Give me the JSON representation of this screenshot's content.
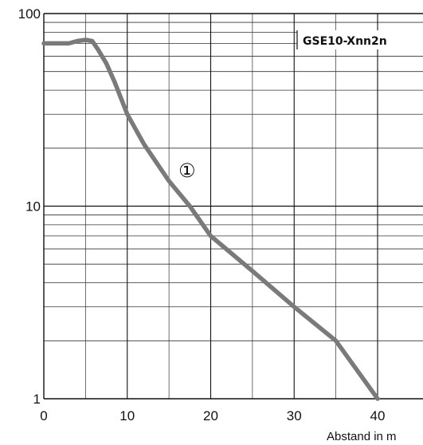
{
  "chart_data": {
    "type": "line",
    "title": "",
    "xlabel": "Abstand in m",
    "ylabel": "",
    "x_scale": "linear",
    "y_scale": "log",
    "xlim": [
      0,
      45
    ],
    "ylim": [
      1,
      100
    ],
    "x_ticks": [
      0,
      10,
      20,
      30,
      40
    ],
    "x_tick_labels": [
      "0",
      "10",
      "20",
      "30",
      "40"
    ],
    "y_ticks": [
      1,
      10,
      100
    ],
    "y_tick_labels": [
      "1",
      "10",
      "100"
    ],
    "grid": true,
    "legend_label": "GSE10-Xnn2n",
    "legend_position": "top-right",
    "annotation": "①",
    "series": [
      {
        "color": "#7a7a7a",
        "x": [
          0,
          3,
          4,
          5,
          5.8,
          6.5,
          7.5,
          8.5,
          10,
          12,
          15,
          17.5,
          20,
          25,
          30,
          35,
          40
        ],
        "y": [
          70,
          70,
          72,
          73,
          72,
          65,
          55,
          44,
          30,
          21,
          13.5,
          10,
          7,
          4.6,
          3,
          2,
          1
        ]
      }
    ]
  }
}
